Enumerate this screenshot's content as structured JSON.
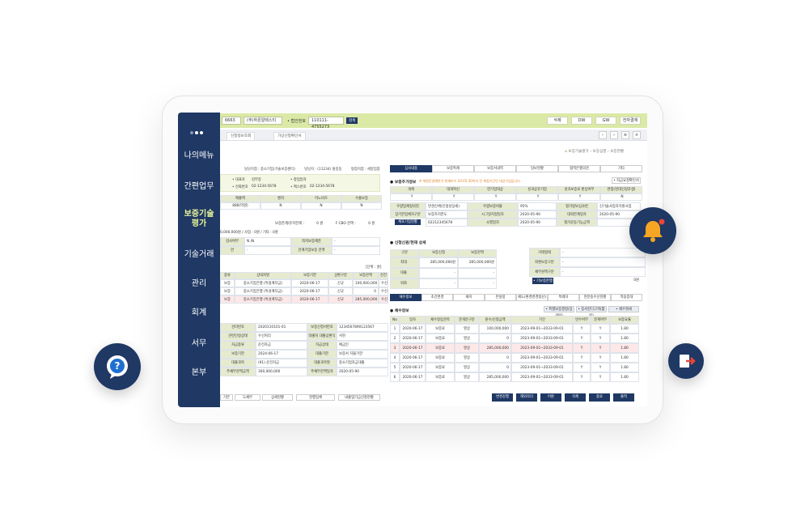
{
  "topbar": {
    "field1": "6663",
    "field2": "(주)하온알렉스티",
    "phone_label": "• 법인번호",
    "phone": "110111-4755273",
    "inquiry": "검색",
    "right_buttons": [
      "삭제",
      "DW",
      "GW",
      "전자결재"
    ]
  },
  "tabs": [
    "신청정보조회",
    "가상신청확인서"
  ],
  "breadcrumb": [
    "보증기술평가",
    "보증심행",
    "보증현황"
  ],
  "left": {
    "info_line": [
      "담당지점 : 중소기업(기술보증센터)",
      "담당자 : (11234) 홍길동",
      "평점지점 : 세방업종"
    ],
    "rep_label": "• 대표자",
    "rep": "김부장",
    "biz_label": "• 창업일자",
    "biz": "",
    "tel_label": "• 전화번호",
    "tel": "02-1234-5678",
    "fax_label": "• 팩스번호",
    "fax": "02-1234-5678",
    "grade_headers": [
      "매출액",
      "벤처",
      "이노비즈",
      "수출보증"
    ],
    "grade_values": [
      "888(억원)",
      "N",
      "N",
      "N"
    ],
    "limit_label": "보증한계/유지한계 :",
    "limit1": "0 원",
    "limit2": "F CBO 잔액 :",
    "limit3": "0 원",
    "amount_line": "0,000,000원 / 사업 : 0원 / 기타 : 0원",
    "y1_label": "감사여부",
    "y1": "N /N",
    "y2_label": "최저보증제한",
    "y2": "-",
    "y3_label": "연",
    "y3": "-",
    "y4_label": "관계기업보증 잔액",
    "y4": "-",
    "unit": "[단위 : 원]",
    "loan_headers": [
      "종류",
      "상대처명",
      "보증기한",
      "상환구분",
      "보증잔액",
      "진전"
    ],
    "loans": [
      [
        "보증",
        "중소기업은행 (특정계자금)",
        "2020-06-17",
        "신규",
        "100,000,000",
        "수신"
      ],
      [
        "보증",
        "중소기업은행 (특성계자금)",
        "2020-06-17",
        "신규",
        "0",
        "수신"
      ],
      [
        "보증",
        "중소기업은행 (특성계자금)",
        "2020-06-17",
        "신규",
        "285,000,000",
        "수신"
      ]
    ],
    "detail": [
      [
        "관리번호",
        "2020110101-01",
        "보증신청서번호",
        "1234567890123567"
      ],
      [
        "관련인정상태",
        "수신처리",
        "대출처 대출상환식",
        "서현"
      ],
      [
        "자금종류",
        "운전자금",
        "하급상태",
        "예금인"
      ],
      [
        "보증기한",
        "2024-06-17",
        "대출기한",
        "보증서 지불기한"
      ],
      [
        "대출과목",
        "(91) 운전자금",
        "대출과목명",
        "중소기업자금대출"
      ],
      [
        "주채무잔액금액",
        "300,000,000",
        "주채무잔액일자",
        "2020-05-90"
      ]
    ],
    "bottom_buttons": [
      "기본",
      "도채무",
      "상세현황",
      "현행업체",
      "내출업기금신청현황"
    ]
  },
  "right": {
    "tabs": [
      "심사내용",
      "보증특례",
      "보증서내역",
      "담보현황",
      "협력은행의견",
      "기타"
    ],
    "s1_title": "보증추가정보",
    "s1_note": "※ 체험운영해본가 현재보수 20-05-30까지 전 체험기간인 대상기업입니다.",
    "s1_btn": "• 자금요청확인서",
    "s1_headers": [
      "개체",
      "대개혁신",
      "한기업대상",
      "성과공유기업",
      "성과보증료 판납여부",
      "면첩(현대인정후생)"
    ],
    "s1_values": [
      "Y",
      "Y",
      "Y",
      "Y",
      "Y",
      "N"
    ],
    "s1_rows": [
      [
        "우량업체정의현",
        "면경신체(인정성장세)",
        "우량보증비율",
        "95%",
        "평가정보심사번",
        "신기술사업자지원사업"
      ],
      [
        "장기본업체자구분",
        "보증하지한도",
        "시그널지정일자",
        "2020-05-90",
        "대외한계일자",
        "2020-05-90"
      ],
      [
        "체포기업현황",
        "02212345678",
        "소멸일자",
        "2020-05-90",
        "평가운동기능금액",
        ""
      ]
    ],
    "s2_title": "신청신원/현재 상세",
    "s2_headers": [
      "구분",
      "보증신청",
      "보증잔액"
    ],
    "s2_rows": [
      [
        "최대",
        "285,000,000원",
        "285,000,000원"
      ],
      [
        "대출",
        "-",
        "-"
      ],
      [
        "외화",
        "-",
        "-"
      ]
    ],
    "s2_right": [
      [
        "거래형태",
        "-"
      ],
      [
        "외환보증구분",
        "-"
      ],
      [
        "채무원액구분",
        "-"
      ]
    ],
    "s2_btn": "• 기보증한행",
    "s2_amt": "0원",
    "tabs2": [
      "채수정보",
      "조건변경",
      "채지",
      "본실정",
      "채도(환경변경정산)",
      "특례자",
      "현분송수신현황",
      "적용증대"
    ],
    "s3_title": "채수정보",
    "s3_btns": [
      "• 특별보증결정(장관련)",
      "• 증서진다고객(활정)",
      "• 채수명세"
    ],
    "s3_headers": [
      "No",
      "일자",
      "채수정립관목",
      "분개분구분",
      "원수/신청금액",
      "기간",
      "반수여부",
      "분계여부",
      "보증요율"
    ],
    "s3_rows": [
      [
        "1",
        "2020-06-17",
        "보증료",
        "영상",
        "100,000,000",
        "2023-09-01~2033-09-01",
        "Y",
        "Y",
        "1.80"
      ],
      [
        "2",
        "2020-06-17",
        "보증료",
        "영상",
        "0",
        "2023-09-01~2033-09-01",
        "Y",
        "Y",
        "1.80"
      ],
      [
        "3",
        "2020-06-17",
        "보증료",
        "영상",
        "285,000,000",
        "2023-09-01~2033-09-01",
        "Y",
        "Y",
        "1.80"
      ],
      [
        "4",
        "2020-06-17",
        "보증료",
        "영상",
        "0",
        "2023-09-01~2033-09-01",
        "Y",
        "Y",
        "1.80"
      ],
      [
        "5",
        "2020-06-17",
        "보증료",
        "영상",
        "0",
        "2023-09-01~2033-09-01",
        "Y",
        "Y",
        "1.80"
      ],
      [
        "6",
        "2020-06-17",
        "보증료",
        "영상",
        "285,000,000",
        "2023-09-01~2033-09-01",
        "Y",
        "Y",
        "1.80"
      ]
    ],
    "bottom_buttons": [
      "변경강행",
      "해외자리",
      "어판",
      "삭제",
      "종료",
      "출력"
    ]
  },
  "sidebar": {
    "items": [
      "나의메뉴",
      "간편업무",
      "보증기술\n평가",
      "기술거래",
      "관리",
      "회계",
      "서무",
      "본부"
    ],
    "active_index": 2
  },
  "colors": {
    "navy": "#1f3864",
    "lime": "#dbe9a6",
    "orange": "#f6a623",
    "highlight": "#fde8e8"
  },
  "icons": [
    "bell-icon",
    "question-icon",
    "logout-icon",
    "home-icon"
  ]
}
